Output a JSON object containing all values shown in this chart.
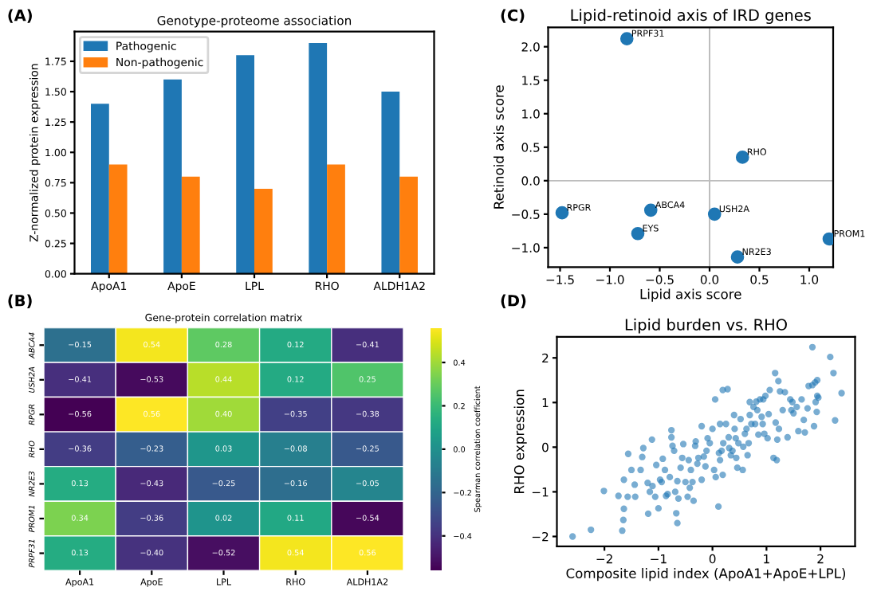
{
  "chart_data": [
    {
      "type": "bar",
      "title": "Genotype-proteome association",
      "ylabel": "Z-normalized protein expression",
      "annotations": [
        "(A)"
      ],
      "categories": [
        "ApoA1",
        "ApoE",
        "LPL",
        "RHO",
        "ALDH1A2"
      ],
      "series": [
        {
          "name": "Pathogenic",
          "color": "#1f77b4",
          "values": [
            1.4,
            1.6,
            1.8,
            1.9,
            1.5
          ]
        },
        {
          "name": "Non-pathogenic",
          "color": "#ff7f0e",
          "values": [
            0.9,
            0.8,
            0.7,
            0.9,
            0.8
          ]
        }
      ],
      "ylim": [
        0,
        1.995
      ],
      "yticks": [
        {
          "value": 0,
          "label": "0.00"
        },
        0.25,
        {
          "value": 0.5,
          "label": "0.50"
        },
        0.75,
        {
          "value": 1,
          "label": "1.00"
        },
        1.25,
        {
          "value": 1.5,
          "label": "1.50"
        },
        1.75
      ],
      "legend": "top left",
      "grid": false
    },
    {
      "type": "heatmap",
      "title": "Gene-protein correlation matrix",
      "clabel": "Spearman correlation coefficient",
      "annotations": [
        "(B)"
      ],
      "categories": [
        "ApoA1",
        "ApoE",
        "LPL",
        "RHO",
        "ALDH1A2"
      ],
      "y_categories": [
        "ABCA4",
        "USH2A",
        "RPGR",
        "RHO",
        "NR2E3",
        "PROM1",
        "PRPF31"
      ],
      "cells": [
        [
          -0.15,
          0.54,
          0.28,
          0.12,
          -0.41
        ],
        [
          -0.41,
          -0.53,
          0.44,
          0.12,
          0.25
        ],
        [
          -0.56,
          0.56,
          0.4,
          -0.35,
          -0.38
        ],
        [
          -0.36,
          -0.23,
          0.03,
          -0.08,
          -0.25
        ],
        [
          0.13,
          -0.43,
          -0.25,
          -0.16,
          -0.05
        ],
        [
          0.34,
          -0.36,
          0.02,
          0.11,
          -0.54
        ],
        [
          0.13,
          -0.4,
          -0.52,
          0.54,
          0.56
        ]
      ],
      "cell_labels": [
        [
          "−0.15",
          "0.54",
          "0.28",
          "0.12",
          "−0.41"
        ],
        [
          "−0.41",
          "−0.53",
          "0.44",
          "0.12",
          "0.25"
        ],
        [
          "−0.56",
          "0.56",
          "0.40",
          "−0.35",
          "−0.38"
        ],
        [
          "−0.36",
          "−0.23",
          "0.03",
          "−0.08",
          "−0.25"
        ],
        [
          "0.13",
          "−0.43",
          "−0.25",
          "−0.16",
          "−0.05"
        ],
        [
          "0.34",
          "−0.36",
          "0.02",
          "0.11",
          "−0.54"
        ],
        [
          "0.13",
          "−0.40",
          "−0.52",
          "0.54",
          "0.56"
        ]
      ],
      "clim": [
        -0.56,
        0.56
      ],
      "cticks": [
        {
          "value": -0.4,
          "label": "−0.4"
        },
        {
          "value": -0.2,
          "label": "−0.2"
        },
        {
          "value": 0,
          "label": "0.0"
        },
        0.2,
        0.4
      ]
    },
    {
      "type": "scatter",
      "title": "Lipid-retinoid axis of IRD genes",
      "xlabel": "Lipid axis score",
      "ylabel": "Retinoid axis score",
      "annotations": [
        "(C)",
        {
          "text": "PRPF31",
          "x": -0.83,
          "y": 2.12
        },
        {
          "text": "RHO",
          "x": 0.33,
          "y": 0.35
        },
        {
          "text": "RPGR",
          "x": -1.48,
          "y": -0.48
        },
        {
          "text": "ABCA4",
          "x": -0.59,
          "y": -0.44
        },
        {
          "text": "USH2A",
          "x": 0.05,
          "y": -0.5
        },
        {
          "text": "EYS",
          "x": -0.72,
          "y": -0.79
        },
        {
          "text": "NR2E3",
          "x": 0.28,
          "y": -1.14
        },
        {
          "text": "PROM1",
          "x": 1.2,
          "y": -0.87
        }
      ],
      "series": [
        {
          "color": "#1f77b4",
          "x": [
            -0.83,
            0.33,
            -1.48,
            -0.59,
            0.05,
            -0.72,
            0.28,
            1.2
          ],
          "values": [
            2.12,
            0.35,
            -0.48,
            -0.44,
            -0.5,
            -0.79,
            -1.14,
            -0.87
          ]
        }
      ],
      "xlim": [
        -1.62,
        1.24
      ],
      "ylim": [
        -1.29,
        2.29
      ],
      "xticks": [
        {
          "value": -1.5,
          "label": "−1.5"
        },
        {
          "value": -1.0,
          "label": "−1.0"
        },
        {
          "value": -0.5,
          "label": "−0.5"
        },
        {
          "value": 0,
          "label": "0.0"
        },
        0.5,
        {
          "value": 1,
          "label": "1.0"
        }
      ],
      "yticks": [
        {
          "value": -1.0,
          "label": "−1.0"
        },
        {
          "value": -0.5,
          "label": "−0.5"
        },
        {
          "value": 0,
          "label": "0.0"
        },
        0.5,
        {
          "value": 1,
          "label": "1.0"
        },
        1.5,
        {
          "value": 2,
          "label": "2.0"
        }
      ],
      "ref_lines": [
        {
          "axis": "x",
          "value": 0,
          "color": "#b0b0b0"
        },
        {
          "axis": "y",
          "value": 0,
          "color": "#bdbdbd"
        }
      ],
      "marker": "circle",
      "grid": false
    },
    {
      "type": "scatter",
      "title": "Lipid burden vs. RHO",
      "xlabel": "Composite lipid index (ApoA1+ApoE+LPL)",
      "ylabel": "RHO expression",
      "annotations": [
        "(D)"
      ],
      "series": [
        {
          "color": "#1f77b4",
          "x": [
            -2.59,
            -2.25,
            -2.01,
            -1.67,
            -1.65,
            -1.74,
            -1.64,
            -1.64,
            -1.57,
            -1.5,
            -1.56,
            -1.44,
            -1.43,
            -1.33,
            -1.3,
            -1.28,
            -1.2,
            -1.19,
            -1.16,
            -1.12,
            -1.11,
            -1.06,
            -1.04,
            -1.0,
            -0.97,
            -0.94,
            -0.92,
            -0.88,
            -0.86,
            -0.83,
            -0.79,
            -0.76,
            -0.76,
            -0.74,
            -0.71,
            -0.69,
            -0.67,
            -0.65,
            -0.65,
            -0.63,
            -0.59,
            -0.56,
            -0.54,
            -0.5,
            -0.46,
            -0.44,
            -0.42,
            -0.4,
            -0.37,
            -0.35,
            -0.32,
            -0.31,
            -0.28,
            -0.26,
            -0.2,
            -0.2,
            -0.16,
            -0.13,
            -0.11,
            -0.09,
            -0.05,
            0.0,
            0.03,
            0.05,
            0.06,
            0.11,
            0.12,
            0.14,
            0.14,
            0.17,
            0.19,
            0.19,
            0.2,
            0.25,
            0.28,
            0.3,
            0.31,
            0.34,
            0.37,
            0.4,
            0.41,
            0.43,
            0.44,
            0.46,
            0.48,
            0.52,
            0.56,
            0.57,
            0.6,
            0.63,
            0.65,
            0.67,
            0.69,
            0.69,
            0.72,
            0.76,
            0.79,
            0.81,
            0.83,
            0.85,
            0.88,
            0.91,
            0.93,
            0.94,
            0.96,
            0.98,
            1.02,
            1.04,
            1.06,
            1.13,
            1.16,
            1.17,
            1.19,
            1.2,
            1.22,
            1.23,
            1.25,
            1.3,
            1.34,
            1.39,
            1.44,
            1.46,
            1.48,
            1.5,
            1.56,
            1.59,
            1.65,
            1.69,
            1.71,
            1.76,
            1.78,
            1.85,
            1.85,
            1.88,
            1.9,
            1.91,
            1.93,
            1.94,
            1.94,
            1.96,
            2.18,
            2.24,
            2.27,
            2.39
          ],
          "values": [
            -2.0,
            -1.85,
            -0.98,
            -1.87,
            -1.63,
            -1.09,
            -1.38,
            -0.73,
            -1.11,
            -0.51,
            -0.15,
            -0.84,
            -1.11,
            -0.51,
            -0.22,
            -0.02,
            -0.8,
            -1.49,
            -1.0,
            0.17,
            -0.87,
            -1.11,
            -0.4,
            -1.37,
            -0.73,
            -0.78,
            -0.26,
            -0.51,
            -1.09,
            -1.05,
            -0.67,
            0.38,
            0.22,
            0.03,
            -0.08,
            -1.0,
            -1.48,
            -1.7,
            -0.76,
            -1.15,
            -0.46,
            -0.24,
            0.07,
            -0.78,
            -1.11,
            -0.29,
            -0.91,
            -0.51,
            -0.78,
            -1.2,
            0.03,
            0.13,
            -0.37,
            -0.24,
            0.47,
            -0.73,
            -0.21,
            -0.43,
            -0.08,
            0.2,
            0.09,
            0.41,
            -0.51,
            1.07,
            -0.67,
            -1.33,
            -0.13,
            0.52,
            -0.29,
            -0.08,
            -0.62,
            1.28,
            0.09,
            0.52,
            1.3,
            0.22,
            -0.02,
            -0.18,
            -0.08,
            0.72,
            0.41,
            0.2,
            -0.24,
            -0.46,
            0.09,
            0.63,
            -0.51,
            0.01,
            0.3,
            0.41,
            -0.18,
            0.09,
            0.72,
            1.01,
            0.52,
            0.9,
            0.52,
            1.02,
            0.83,
            0.28,
            1.07,
            0.68,
            0.52,
            1.07,
            0.3,
            1.15,
            0.2,
            0.74,
            1.28,
            -0.24,
            1.66,
            0.55,
            -0.29,
            0.17,
            1.48,
            0.41,
            1.25,
            0.83,
            1.23,
            0.22,
            1.07,
            0.83,
            1.01,
            0.76,
            0.9,
            0.36,
            1.07,
            0.61,
            0.33,
            0.87,
            1.37,
            2.24,
            1.39,
            0.47,
            1.45,
            1.01,
            0.79,
            1.5,
            1.15,
            1.11,
            2.02,
            1.66,
            0.6,
            1.21
          ]
        }
      ],
      "xlim": [
        -2.88,
        2.64
      ],
      "ylim": [
        -2.22,
        2.47
      ],
      "xticks": [
        {
          "value": -2,
          "label": "−2"
        },
        {
          "value": -1,
          "label": "−1"
        },
        0,
        1,
        2
      ],
      "yticks": [
        {
          "value": -2,
          "label": "−2"
        },
        {
          "value": -1,
          "label": "−1"
        },
        0,
        1,
        2
      ],
      "marker": "circle",
      "grid": false
    }
  ]
}
